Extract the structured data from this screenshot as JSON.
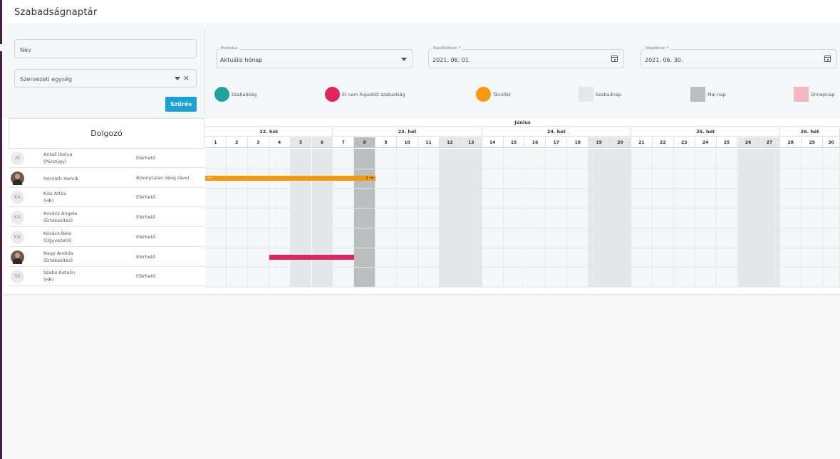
{
  "page": {
    "title": "Szabadságnaptár"
  },
  "filters": {
    "name_placeholder": "Név",
    "org_unit_placeholder": "Szervezeti egység",
    "filter_button": "Szűrés",
    "period": {
      "label": "Periódus",
      "value": "Aktuális hónap"
    },
    "start_date": {
      "label": "Kezdődátum *",
      "value": "2021. 06. 01."
    },
    "end_date": {
      "label": "Végdátum *",
      "value": "2021. 06. 30."
    }
  },
  "legend": [
    {
      "label": "Szabadság",
      "color": "#1ea39d",
      "shape": "circle"
    },
    {
      "label": "El nem fogadott szabadság",
      "color": "#e2245c",
      "shape": "circle"
    },
    {
      "label": "Távollét",
      "color": "#f7990f",
      "shape": "circle"
    },
    {
      "label": "Szabadnap",
      "color": "#e4e8ea",
      "shape": "square"
    },
    {
      "label": "Mai nap",
      "color": "#bbbdbe",
      "shape": "square"
    },
    {
      "label": "Ünnepnap",
      "color": "#f5b8c2",
      "shape": "square"
    }
  ],
  "employees_header": "Dolgozó",
  "employees": [
    {
      "initials": "AI",
      "photo": false,
      "name": "Antall Ibolya",
      "dept": "(Pénzügy)",
      "status": "Elérhető"
    },
    {
      "initials": "",
      "photo": true,
      "name": "Horváth Henrik",
      "dept": "",
      "status": "Bizonytalan ideig távol"
    },
    {
      "initials": "KA",
      "photo": false,
      "name": "Kiss Attila",
      "dept": "(HR)",
      "status": "Elérhető"
    },
    {
      "initials": "KA",
      "photo": false,
      "name": "Kovács Angela",
      "dept": "(Értékesítés)",
      "status": "Elérhető"
    },
    {
      "initials": "KB",
      "photo": false,
      "name": "Kovács Béla",
      "dept": "(Ügyvezető)",
      "status": "Elérhető"
    },
    {
      "initials": "",
      "photo": true,
      "name": "Nagy András",
      "dept": "(Értékesítés)",
      "status": "Elérhető"
    },
    {
      "initials": "SK",
      "photo": false,
      "name": "Szabó Katalin",
      "dept": "(HR)",
      "status": "Elérhető"
    }
  ],
  "calendar": {
    "month": "Június",
    "weeks": [
      {
        "label": "22. hét",
        "days": [
          1,
          2,
          3,
          4,
          5,
          6
        ]
      },
      {
        "label": "23. hét",
        "days": [
          7,
          8,
          9,
          10,
          11,
          12,
          13
        ]
      },
      {
        "label": "24. hét",
        "days": [
          14,
          15,
          16,
          17,
          18,
          19,
          20
        ]
      },
      {
        "label": "25. hét",
        "days": [
          21,
          22,
          23,
          24,
          25,
          26,
          27
        ]
      },
      {
        "label": "26. hét",
        "days": [
          28,
          29,
          30
        ]
      }
    ],
    "weekend_days": [
      5,
      6,
      12,
      13,
      19,
      20,
      26,
      27
    ],
    "today": 8,
    "absences": [
      {
        "employee": "Horváth Henrik",
        "type": "Távollét",
        "from": 1,
        "to": 8,
        "color": "#f7990f",
        "continues_before": true,
        "continues_after": true
      },
      {
        "employee": "Nagy András",
        "type": "El nem fogadott szabadság",
        "from": 4,
        "to": 7,
        "color": "#e2245c",
        "continues_before": false,
        "continues_after": false
      }
    ]
  },
  "icons": {
    "arrow_left": "←",
    "arrow_right": "→",
    "arrow_right_label": "I",
    "clear": "×"
  }
}
